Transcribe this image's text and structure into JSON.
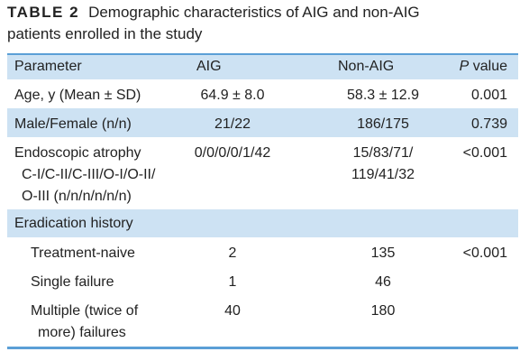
{
  "title": {
    "label": "TABLE 2",
    "caption_lines": [
      "Demographic characteristics of AIG and non-AIG",
      "patients enrolled in the study"
    ]
  },
  "table": {
    "header": [
      "Parameter",
      "AIG",
      "Non-AIG",
      "P value"
    ],
    "rows": [
      [
        [
          "Age, y (Mean ± SD)"
        ],
        [
          "64.9 ± 8.0"
        ],
        [
          "58.3 ± 12.9"
        ],
        [
          "0.001"
        ]
      ],
      [
        [
          "Male/Female (n/n)"
        ],
        [
          "21/22"
        ],
        [
          "186/175"
        ],
        [
          "0.739"
        ]
      ],
      [
        [
          "Endoscopic atrophy",
          "C-I/C-II/C-III/O-I/O-II/",
          "O-III (n/n/n/n/n/n)"
        ],
        [
          "0/0/0/0/1/42"
        ],
        [
          "15/83/71/",
          "119/41/32"
        ],
        [
          "<0.001"
        ]
      ]
    ],
    "groups": [
      {
        "label": "Eradication history",
        "rows": [
          [
            [
              "Treatment-naive"
            ],
            [
              "2"
            ],
            [
              "135"
            ],
            [
              "<0.001"
            ]
          ],
          [
            [
              "Single failure"
            ],
            [
              "1"
            ],
            [
              "46"
            ],
            null
          ],
          [
            [
              "Multiple (twice of",
              "more) failures"
            ],
            [
              "40"
            ],
            [
              "180"
            ],
            null
          ]
        ]
      }
    ]
  }
}
